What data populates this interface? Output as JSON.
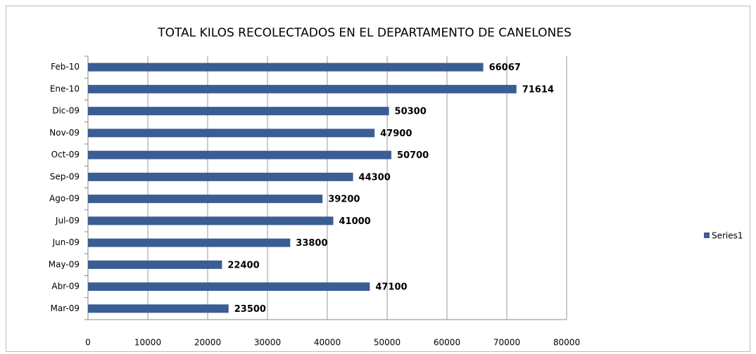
{
  "chart_data": {
    "type": "bar",
    "orientation": "horizontal",
    "title": "TOTAL KILOS RECOLECTADOS EN EL  DEPARTAMENTO DE CANELONES",
    "categories": [
      "Mar-09",
      "Abr-09",
      "May-09",
      "Jun-09",
      "Jul-09",
      "Ago-09",
      "Sep-09",
      "Oct-09",
      "Nov-09",
      "Dic-09",
      "Ene-10",
      "Feb-10"
    ],
    "series": [
      {
        "name": "Series1",
        "color": "#3a5d93",
        "values": [
          23500,
          47100,
          22400,
          33800,
          41000,
          39200,
          44300,
          50700,
          47900,
          50300,
          71614,
          66067
        ]
      }
    ],
    "xlim": [
      0,
      80000
    ],
    "xticks": [
      0,
      10000,
      20000,
      30000,
      40000,
      50000,
      60000,
      70000,
      80000
    ],
    "grid": true,
    "legend": "right"
  }
}
